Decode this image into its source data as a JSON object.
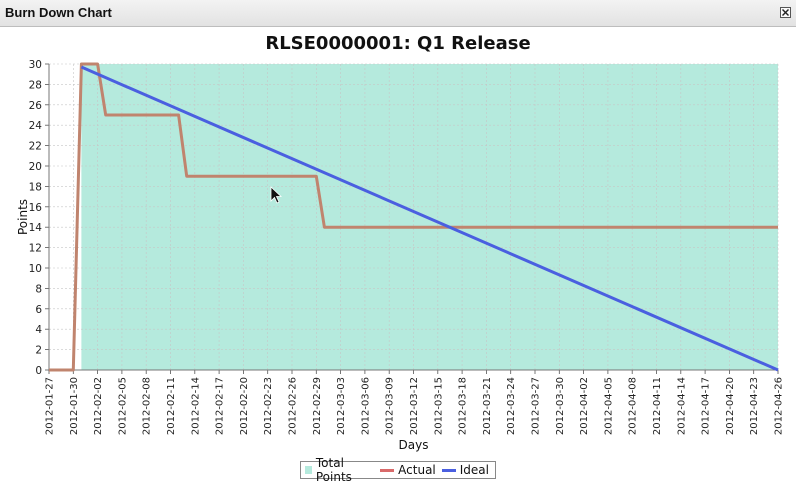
{
  "window": {
    "title": "Burn Down Chart"
  },
  "colors": {
    "total": "#b5eadd",
    "actual": "#d96a6a",
    "actual_line": "#c0846e",
    "ideal": "#4a5fe0"
  },
  "chart_data": {
    "type": "area",
    "title": "RLSE0000001: Q1 Release",
    "xlabel": "Days",
    "ylabel": "Points",
    "ylim": [
      0,
      30
    ],
    "yticks": [
      0,
      2,
      4,
      6,
      8,
      10,
      12,
      14,
      16,
      18,
      20,
      22,
      24,
      26,
      28,
      30
    ],
    "xticks": [
      "2012-01-27",
      "2012-01-30",
      "2012-02-02",
      "2012-02-05",
      "2012-02-08",
      "2012-02-11",
      "2012-02-14",
      "2012-02-17",
      "2012-02-20",
      "2012-02-23",
      "2012-02-26",
      "2012-02-29",
      "2012-03-03",
      "2012-03-06",
      "2012-03-09",
      "2012-03-12",
      "2012-03-15",
      "2012-03-18",
      "2012-03-21",
      "2012-03-24",
      "2012-03-27",
      "2012-03-30",
      "2012-04-02",
      "2012-04-05",
      "2012-04-08",
      "2012-04-11",
      "2012-04-14",
      "2012-04-17",
      "2012-04-20",
      "2012-04-23",
      "2012-04-26"
    ],
    "grid": true,
    "legend_position": "bottom",
    "series": [
      {
        "name": "Total Points",
        "kind": "area",
        "points": [
          [
            "2012-01-31",
            30
          ],
          [
            "2012-04-26",
            30
          ]
        ]
      },
      {
        "name": "Actual",
        "kind": "line",
        "points": [
          [
            "2012-01-27",
            0
          ],
          [
            "2012-01-30",
            0
          ],
          [
            "2012-01-31",
            30
          ],
          [
            "2012-02-02",
            30
          ],
          [
            "2012-02-03",
            25
          ],
          [
            "2012-02-12",
            25
          ],
          [
            "2012-02-13",
            19
          ],
          [
            "2012-02-29",
            19
          ],
          [
            "2012-03-01",
            14
          ],
          [
            "2012-04-26",
            14
          ]
        ]
      },
      {
        "name": "Ideal",
        "kind": "line",
        "points": [
          [
            "2012-01-31",
            29.7
          ],
          [
            "2012-04-26",
            0
          ]
        ]
      }
    ]
  }
}
